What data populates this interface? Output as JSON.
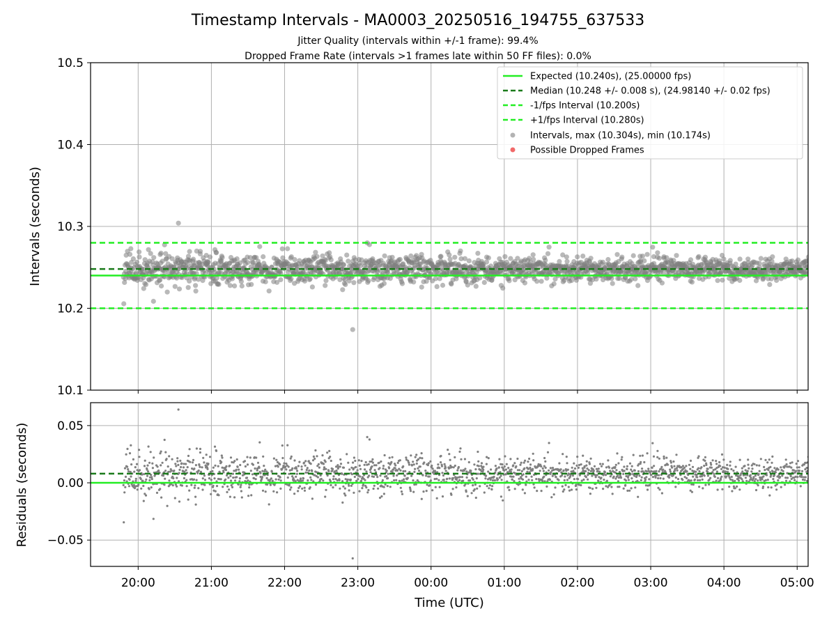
{
  "figure": {
    "title": "Timestamp Intervals - MA0003_20250516_194755_637533",
    "subtitle_line1": "Jitter Quality (intervals within +/-1 frame): 99.4%",
    "subtitle_line2": "Dropped Frame Rate (intervals >1 frames late within 50 FF files): 0.0%"
  },
  "colors": {
    "expected": "#22ee22",
    "median": "#1a7a1a",
    "bounds": "#22ee22",
    "points": "#808080",
    "dropped": "#ee4444",
    "grid": "#b0b0b0"
  },
  "chart_data": [
    {
      "type": "scatter",
      "ylabel": "Intervals (seconds)",
      "ylim": [
        10.1,
        10.5
      ],
      "yticks": [
        10.1,
        10.2,
        10.3,
        10.4,
        10.5
      ],
      "ytick_labels": [
        "10.1",
        "10.2",
        "10.3",
        "10.4",
        "10.5"
      ],
      "grid": true,
      "legend_position": "top-right",
      "series": [
        {
          "name": "Expected (10.240s), (25.00000 fps)",
          "kind": "hline",
          "style": "solid",
          "y": 10.24
        },
        {
          "name": "Median (10.248 +/- 0.008 s), (24.98140 +/- 0.02 fps)",
          "kind": "hline",
          "style": "dashed",
          "y": 10.248
        },
        {
          "name": "-1/fps Interval (10.200s)",
          "kind": "hline",
          "style": "dashed",
          "y": 10.2
        },
        {
          "name": "+1/fps Interval (10.280s)",
          "kind": "hline",
          "style": "dashed",
          "y": 10.28
        },
        {
          "name": "Intervals, max (10.304s), min (10.174s)",
          "kind": "points",
          "max": 10.304,
          "min": 10.174,
          "count": 1900,
          "time_range": [
            "19:48",
            "05:10"
          ]
        },
        {
          "name": "Possible Dropped Frames",
          "kind": "points",
          "count": 0
        }
      ]
    },
    {
      "type": "scatter",
      "xlabel": "Time (UTC)",
      "ylabel": "Residuals (seconds)",
      "ylim": [
        -0.073,
        0.07
      ],
      "yticks": [
        -0.05,
        0.0,
        0.05
      ],
      "ytick_labels": [
        "−0.05",
        "0.00",
        "0.05"
      ],
      "xlim_hours": [
        19.35,
        29.15
      ],
      "xticks_hours": [
        20,
        21,
        22,
        23,
        24,
        25,
        26,
        27,
        28,
        29
      ],
      "xtick_labels": [
        "20:00",
        "21:00",
        "22:00",
        "23:00",
        "00:00",
        "01:00",
        "02:00",
        "03:00",
        "04:00",
        "05:00"
      ],
      "grid": true,
      "series": [
        {
          "name": "Expected",
          "kind": "hline",
          "style": "solid",
          "y": 0.0
        },
        {
          "name": "Median",
          "kind": "hline",
          "style": "dashed",
          "y": 0.008
        },
        {
          "name": "Residuals",
          "kind": "points",
          "max": 0.064,
          "min": -0.066,
          "count": 1900
        }
      ]
    }
  ]
}
